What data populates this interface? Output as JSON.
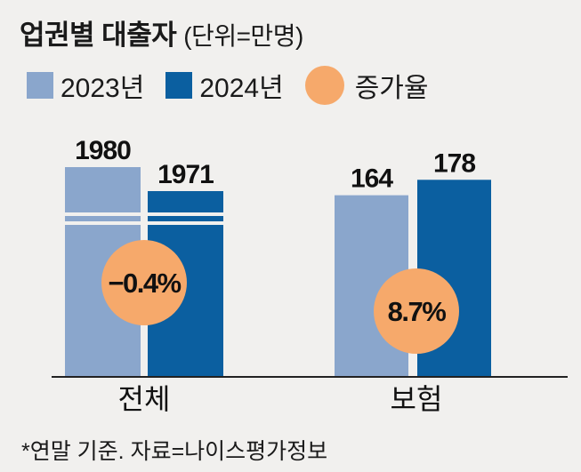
{
  "title": "업권별 대출자",
  "unit": "(단위=만명)",
  "footnote": "*연말 기준. 자료=나이스평가정보",
  "colors": {
    "y2023": "#8aa6cc",
    "y2024": "#0b5fa0",
    "growth": "#f6a96b",
    "background": "#f1f0ee"
  },
  "legend": [
    {
      "label": "2023년",
      "color": "#8aa6cc",
      "shape": "square"
    },
    {
      "label": "2024년",
      "color": "#0b5fa0",
      "shape": "square"
    },
    {
      "label": "증가율",
      "color": "#f6a96b",
      "shape": "circle"
    }
  ],
  "chart_data": {
    "type": "bar",
    "title": "업권별 대출자",
    "ylabel": "",
    "categories": [
      "전체",
      "보험"
    ],
    "series": [
      {
        "name": "2023년",
        "values": [
          1980,
          164
        ]
      },
      {
        "name": "2024년",
        "values": [
          1971,
          178
        ]
      }
    ],
    "value_labels": [
      [
        "1980",
        "1971"
      ],
      [
        "164",
        "178"
      ]
    ],
    "growth_labels": [
      "−0.4%",
      "8.7%"
    ],
    "growth_values": [
      -0.4,
      8.7
    ],
    "axis_break": {
      "category": "전체"
    },
    "legend_position": "top",
    "grid": false
  }
}
